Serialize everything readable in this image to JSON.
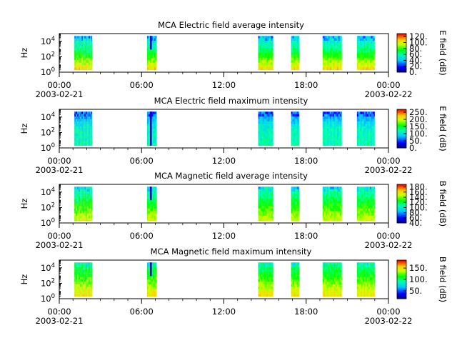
{
  "chart_data": [
    {
      "type": "heatmap",
      "title": "MCA  Electric field average intensity",
      "ylabel": "Hz",
      "colorbar_label": "E field (dB)",
      "colorbar_range": [
        0,
        130
      ],
      "colorbar_ticks": [
        "0.",
        "20.",
        "40.",
        "60.",
        "80.",
        "100.",
        "120."
      ],
      "ylim_hz": [
        1,
        100000
      ],
      "y_ticks": [
        {
          "base": "10",
          "exp": "0"
        },
        {
          "base": "10",
          "exp": "2"
        },
        {
          "base": "10",
          "exp": "4"
        }
      ],
      "x_ticks": [
        "00:00",
        "06:00",
        "12:00",
        "18:00",
        "00:00"
      ],
      "x_dates": [
        "2003-02-21",
        "2003-02-22"
      ],
      "xlim_hours": [
        0,
        24
      ],
      "segments_hours": [
        [
          1.1,
          2.4
        ],
        [
          6.4,
          7.1
        ],
        [
          14.5,
          15.6
        ],
        [
          16.9,
          17.5
        ],
        [
          19.2,
          20.6
        ],
        [
          21.7,
          23.0
        ]
      ],
      "level_profile": {
        "low_freq_db": 105,
        "mid_freq_db": 70,
        "high_freq_db": 45
      }
    },
    {
      "type": "heatmap",
      "title": "MCA  Electric field maximum intensity",
      "ylabel": "Hz",
      "colorbar_label": "E field (dB)",
      "colorbar_range": [
        0,
        270
      ],
      "colorbar_ticks": [
        "0.",
        "50.",
        "100.",
        "150.",
        "200.",
        "250."
      ],
      "ylim_hz": [
        1,
        100000
      ],
      "y_ticks": [
        {
          "base": "10",
          "exp": "0"
        },
        {
          "base": "10",
          "exp": "2"
        },
        {
          "base": "10",
          "exp": "4"
        }
      ],
      "x_ticks": [
        "00:00",
        "06:00",
        "12:00",
        "18:00",
        "00:00"
      ],
      "x_dates": [
        "2003-02-21",
        "2003-02-22"
      ],
      "xlim_hours": [
        0,
        24
      ],
      "segments_hours": [
        [
          1.1,
          2.4
        ],
        [
          6.4,
          7.1
        ],
        [
          14.5,
          15.6
        ],
        [
          16.9,
          17.5
        ],
        [
          19.2,
          20.6
        ],
        [
          21.7,
          23.0
        ]
      ],
      "level_profile": {
        "low_freq_db": 120,
        "mid_freq_db": 110,
        "high_freq_db": 60
      }
    },
    {
      "type": "heatmap",
      "title": "MCA  Magnetic field average intensity",
      "ylabel": "Hz",
      "colorbar_label": "B field (dB)",
      "colorbar_range": [
        40,
        190
      ],
      "colorbar_ticks": [
        "40.",
        "60.",
        "80.",
        "100.",
        "120.",
        "140.",
        "160.",
        "180."
      ],
      "ylim_hz": [
        1,
        100000
      ],
      "y_ticks": [
        {
          "base": "10",
          "exp": "0"
        },
        {
          "base": "10",
          "exp": "2"
        },
        {
          "base": "10",
          "exp": "4"
        }
      ],
      "x_ticks": [
        "00:00",
        "06:00",
        "12:00",
        "18:00",
        "00:00"
      ],
      "x_dates": [
        "2003-02-21",
        "2003-02-22"
      ],
      "xlim_hours": [
        0,
        24
      ],
      "segments_hours": [
        [
          1.1,
          2.4
        ],
        [
          6.4,
          7.1
        ],
        [
          14.5,
          15.6
        ],
        [
          16.9,
          17.5
        ],
        [
          19.2,
          20.6
        ],
        [
          21.7,
          23.0
        ]
      ],
      "level_profile": {
        "low_freq_db": 150,
        "mid_freq_db": 125,
        "high_freq_db": 100
      }
    },
    {
      "type": "heatmap",
      "title": "MCA  Magnetic field maximum intensity",
      "ylabel": "Hz",
      "colorbar_label": "B field (dB)",
      "colorbar_range": [
        15,
        185
      ],
      "colorbar_ticks": [
        "50.",
        "100.",
        "150."
      ],
      "ylim_hz": [
        1,
        100000
      ],
      "y_ticks": [
        {
          "base": "10",
          "exp": "0"
        },
        {
          "base": "10",
          "exp": "2"
        },
        {
          "base": "10",
          "exp": "4"
        }
      ],
      "x_ticks": [
        "00:00",
        "06:00",
        "12:00",
        "18:00",
        "00:00"
      ],
      "x_dates": [
        "2003-02-21",
        "2003-02-22"
      ],
      "xlim_hours": [
        0,
        24
      ],
      "segments_hours": [
        [
          1.1,
          2.4
        ],
        [
          6.4,
          7.1
        ],
        [
          14.5,
          15.6
        ],
        [
          16.9,
          17.5
        ],
        [
          19.2,
          20.6
        ],
        [
          21.7,
          23.0
        ]
      ],
      "level_profile": {
        "low_freq_db": 150,
        "mid_freq_db": 120,
        "high_freq_db": 95
      }
    }
  ]
}
